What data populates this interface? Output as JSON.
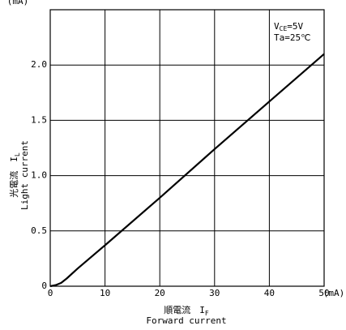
{
  "chart_data": {
    "type": "line",
    "x_label": {
      "text": "順電流　I",
      "sub": "F"
    },
    "x_label_en": "Forward current",
    "x_unit": "(mA)",
    "y_label": {
      "text": "光電流　I",
      "sub": "L"
    },
    "y_label_en": "Light current",
    "y_unit": "(mA)",
    "annotations": [
      {
        "text": "V",
        "sub": "CE",
        "tail": "=5V"
      },
      {
        "text": "Ta=25℃"
      }
    ],
    "x": [
      0,
      1,
      2,
      3,
      5,
      10,
      20,
      30,
      40,
      50
    ],
    "series": [
      {
        "name": "Light current",
        "color": "#000000",
        "values": [
          0,
          0.01,
          0.03,
          0.07,
          0.16,
          0.37,
          0.8,
          1.24,
          1.67,
          2.1
        ]
      }
    ],
    "xlim": [
      0,
      50
    ],
    "xticks": [
      0,
      10,
      20,
      30,
      40,
      50
    ],
    "ylim": [
      0,
      2.5
    ],
    "yticks": [
      0,
      0.5,
      {
        "value": 1,
        "label": "1.0"
      },
      1.5,
      {
        "value": 2,
        "label": "2.0"
      }
    ],
    "grid": true
  }
}
